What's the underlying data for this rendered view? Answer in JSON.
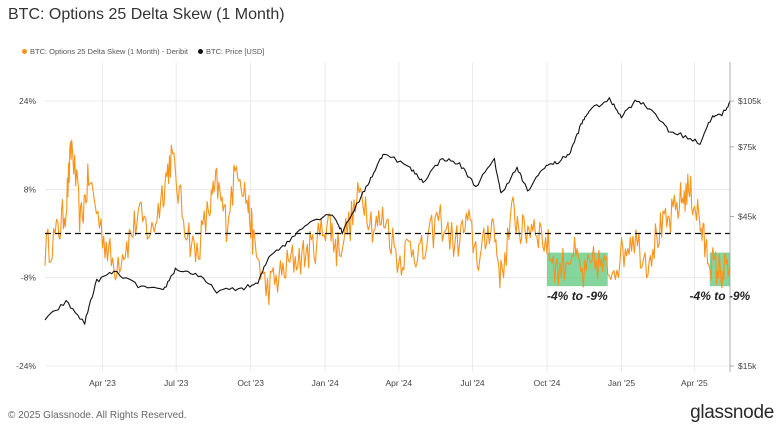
{
  "title": "BTC: Options 25 Delta Skew (1 Month)",
  "footer": "© 2025 Glassnode. All Rights Reserved.",
  "brand": "glassnode",
  "colors": {
    "skew": "#f7931a",
    "price": "#111111",
    "highlight": "#5cc77e",
    "grid": "#e6e6e6"
  },
  "chart_data": {
    "type": "line",
    "title": "BTC: Options 25 Delta Skew (1 Month)",
    "legend_position": "top-left",
    "grid": true,
    "x_ticks": [
      "Apr '23",
      "Jul '23",
      "Oct '23",
      "Jan '24",
      "Apr '24",
      "Jul '24",
      "Oct '24",
      "Jan '25",
      "Apr '25"
    ],
    "x_range": [
      "2023-01-20",
      "2025-05-15"
    ],
    "y_left": {
      "ticks": [
        "24%",
        "8%",
        "-8%",
        "-24%"
      ],
      "range": [
        -24,
        24
      ],
      "unit": "%"
    },
    "y_right": {
      "ticks": [
        "$105k",
        "$75k",
        "$45k",
        "$15k"
      ],
      "range": [
        15000,
        105000
      ],
      "scale": "log"
    },
    "reference_line": {
      "value": 0,
      "style": "dashed"
    },
    "series": [
      {
        "name": "BTC: Options 25 Delta Skew (1 Month) - Deribit",
        "axis": "left",
        "points": [
          [
            "2023-01-20",
            -3
          ],
          [
            "2023-02-05",
            0
          ],
          [
            "2023-02-15",
            5
          ],
          [
            "2023-02-22",
            16
          ],
          [
            "2023-03-05",
            2
          ],
          [
            "2023-03-15",
            10
          ],
          [
            "2023-04-01",
            0
          ],
          [
            "2023-04-15",
            -6
          ],
          [
            "2023-05-01",
            -2
          ],
          [
            "2023-05-15",
            3
          ],
          [
            "2023-06-01",
            0
          ],
          [
            "2023-06-15",
            8
          ],
          [
            "2023-06-25",
            14
          ],
          [
            "2023-07-10",
            3
          ],
          [
            "2023-07-25",
            -4
          ],
          [
            "2023-08-10",
            4
          ],
          [
            "2023-08-20",
            9
          ],
          [
            "2023-09-01",
            2
          ],
          [
            "2023-09-15",
            13
          ],
          [
            "2023-09-28",
            5
          ],
          [
            "2023-10-05",
            -2
          ],
          [
            "2023-10-20",
            -10
          ],
          [
            "2023-11-05",
            -8
          ],
          [
            "2023-11-20",
            -5
          ],
          [
            "2023-12-05",
            -4
          ],
          [
            "2023-12-20",
            -2
          ],
          [
            "2024-01-05",
            3
          ],
          [
            "2024-01-15",
            -3
          ],
          [
            "2024-02-01",
            2
          ],
          [
            "2024-02-15",
            8
          ],
          [
            "2024-03-01",
            1
          ],
          [
            "2024-03-15",
            3
          ],
          [
            "2024-04-01",
            -5
          ],
          [
            "2024-04-15",
            -2
          ],
          [
            "2024-05-01",
            -4
          ],
          [
            "2024-05-20",
            3
          ],
          [
            "2024-06-10",
            -2
          ],
          [
            "2024-06-25",
            2
          ],
          [
            "2024-07-10",
            -5
          ],
          [
            "2024-07-25",
            3
          ],
          [
            "2024-08-05",
            -8
          ],
          [
            "2024-08-20",
            4
          ],
          [
            "2024-09-01",
            0
          ],
          [
            "2024-09-15",
            2
          ],
          [
            "2024-10-01",
            -2
          ],
          [
            "2024-10-15",
            -7
          ],
          [
            "2024-11-01",
            -3
          ],
          [
            "2024-11-15",
            -8
          ],
          [
            "2024-12-01",
            -5
          ],
          [
            "2024-12-15",
            -7
          ],
          [
            "2025-01-01",
            -4
          ],
          [
            "2025-01-15",
            0
          ],
          [
            "2025-02-01",
            -5
          ],
          [
            "2025-02-15",
            0
          ],
          [
            "2025-03-01",
            2
          ],
          [
            "2025-03-15",
            6
          ],
          [
            "2025-03-25",
            8
          ],
          [
            "2025-04-05",
            4
          ],
          [
            "2025-04-15",
            -3
          ],
          [
            "2025-04-25",
            -6
          ],
          [
            "2025-05-05",
            -7
          ],
          [
            "2025-05-15",
            -6
          ]
        ]
      },
      {
        "name": "BTC: Price [USD]",
        "axis": "right",
        "points": [
          [
            "2023-01-20",
            21000
          ],
          [
            "2023-02-15",
            24000
          ],
          [
            "2023-03-10",
            20500
          ],
          [
            "2023-03-25",
            28000
          ],
          [
            "2023-04-15",
            30000
          ],
          [
            "2023-05-15",
            27000
          ],
          [
            "2023-06-15",
            26000
          ],
          [
            "2023-06-30",
            30500
          ],
          [
            "2023-07-25",
            29500
          ],
          [
            "2023-08-20",
            26000
          ],
          [
            "2023-09-20",
            26500
          ],
          [
            "2023-10-10",
            27500
          ],
          [
            "2023-10-25",
            34000
          ],
          [
            "2023-11-15",
            37000
          ],
          [
            "2023-12-10",
            43000
          ],
          [
            "2024-01-10",
            46000
          ],
          [
            "2024-01-22",
            40000
          ],
          [
            "2024-02-15",
            52000
          ],
          [
            "2024-03-01",
            62000
          ],
          [
            "2024-03-14",
            72000
          ],
          [
            "2024-04-15",
            64000
          ],
          [
            "2024-05-01",
            58000
          ],
          [
            "2024-05-25",
            69000
          ],
          [
            "2024-06-15",
            66000
          ],
          [
            "2024-07-05",
            56000
          ],
          [
            "2024-07-28",
            68000
          ],
          [
            "2024-08-05",
            53000
          ],
          [
            "2024-08-25",
            64000
          ],
          [
            "2024-09-07",
            54000
          ],
          [
            "2024-09-28",
            65000
          ],
          [
            "2024-10-15",
            67000
          ],
          [
            "2024-10-30",
            72000
          ],
          [
            "2024-11-12",
            88000
          ],
          [
            "2024-11-22",
            98000
          ],
          [
            "2024-12-17",
            106000
          ],
          [
            "2025-01-01",
            94000
          ],
          [
            "2025-01-20",
            106000
          ],
          [
            "2025-02-10",
            97000
          ],
          [
            "2025-02-28",
            84000
          ],
          [
            "2025-03-15",
            82000
          ],
          [
            "2025-04-08",
            77000
          ],
          [
            "2025-04-22",
            93000
          ],
          [
            "2025-05-05",
            95000
          ],
          [
            "2025-05-15",
            104000
          ]
        ]
      }
    ],
    "annotations": [
      {
        "text": "-4% to -9%",
        "range": [
          "2024-10-01",
          "2024-12-15"
        ],
        "y_range": [
          -9,
          -4
        ]
      },
      {
        "text": "-4% to -9%",
        "range": [
          "2025-04-20",
          "2025-05-15"
        ],
        "y_range": [
          -9,
          -4
        ]
      }
    ]
  }
}
